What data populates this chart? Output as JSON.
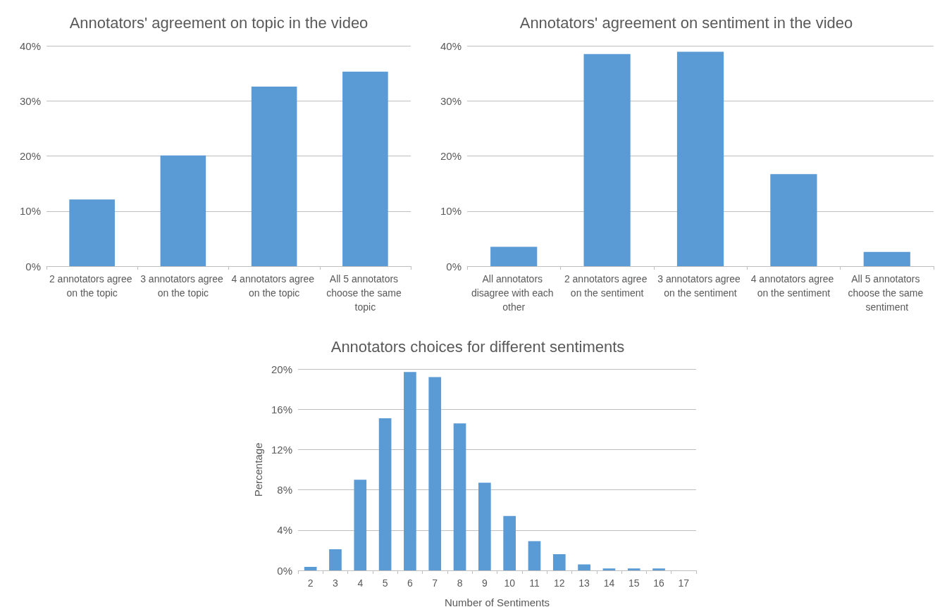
{
  "chart_data": [
    {
      "type": "bar",
      "title": "Annotators' agreement on topic in the video",
      "categories": [
        "2 annotators agree on the topic",
        "3 annotators agree on the topic",
        "4 annotators agree on the topic",
        "All 5 annotators choose the same topic"
      ],
      "values": [
        12.1,
        20.1,
        32.6,
        35.3
      ],
      "color": "#5b9bd5",
      "ylim": [
        0,
        40
      ],
      "yticks": [
        {
          "value": 0,
          "label": "0%"
        },
        {
          "value": 10,
          "label": "10%"
        },
        {
          "value": 20,
          "label": "20%"
        },
        {
          "value": 30,
          "label": "30%"
        },
        {
          "value": 40,
          "label": "40%"
        }
      ],
      "grid": "y"
    },
    {
      "type": "bar",
      "title": "Annotators' agreement on sentiment in the video",
      "categories": [
        "All annotators disagree with each other",
        "2 annotators agree on the sentiment",
        "3 annotators agree on the sentiment",
        "4 annotators agree on the sentiment",
        "All 5 annotators choose the same sentiment"
      ],
      "values": [
        3.5,
        38.5,
        38.9,
        16.7,
        2.6
      ],
      "color": "#5b9bd5",
      "ylim": [
        0,
        40
      ],
      "yticks": [
        {
          "value": 0,
          "label": "0%"
        },
        {
          "value": 10,
          "label": "10%"
        },
        {
          "value": 20,
          "label": "20%"
        },
        {
          "value": 30,
          "label": "30%"
        },
        {
          "value": 40,
          "label": "40%"
        }
      ],
      "grid": "y"
    },
    {
      "type": "bar",
      "title": "Annotators choices for different sentiments",
      "xlabel": "Number of Sentiments",
      "ylabel": "Percentage",
      "categories": [
        "2",
        "3",
        "4",
        "5",
        "6",
        "7",
        "8",
        "9",
        "10",
        "11",
        "12",
        "13",
        "14",
        "15",
        "16",
        "17"
      ],
      "values": [
        0.35,
        2.1,
        9.0,
        15.1,
        19.7,
        19.2,
        14.6,
        8.7,
        5.4,
        2.9,
        1.6,
        0.6,
        0.2,
        0.2,
        0.2,
        0
      ],
      "color": "#5b9bd5",
      "ylim": [
        0,
        20
      ],
      "yticks": [
        {
          "value": 0,
          "label": "0%"
        },
        {
          "value": 4,
          "label": "4%"
        },
        {
          "value": 8,
          "label": "8%"
        },
        {
          "value": 12,
          "label": "12%"
        },
        {
          "value": 16,
          "label": "16%"
        },
        {
          "value": 20,
          "label": "20%"
        }
      ],
      "grid": "y"
    }
  ]
}
